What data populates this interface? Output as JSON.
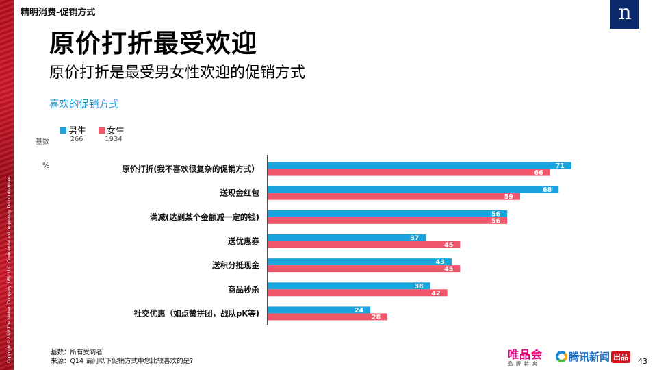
{
  "header": {
    "section_label": "精明消费-促销方式",
    "title": "原价打折最受欢迎",
    "subtitle": "原价打折是最受男女性欢迎的促销方式"
  },
  "brand": {
    "logo_letter": "n"
  },
  "side_note": "Copyright © 2018 The Nielsen Company (US), LLC. Confidential and proprietary. Do not distribute.",
  "chart_data": {
    "type": "bar",
    "orientation": "horizontal",
    "title": "喜欢的促销方式",
    "unit": "%",
    "base_label": "基数",
    "categories": [
      "原价打折(我不喜欢很复杂的促销方式）",
      "送现金红包",
      "满减(达到某个金额减一定的钱)",
      "送优惠券",
      "送积分抵现金",
      "商品秒杀",
      "社交优惠（如点赞拼团，战队pK等)"
    ],
    "series": [
      {
        "name": "男生",
        "base": "266",
        "color": "#1aa3dd",
        "values": [
          71,
          68,
          56,
          37,
          43,
          38,
          24
        ]
      },
      {
        "name": "女生",
        "base": "1934",
        "color": "#f2566a",
        "values": [
          66,
          59,
          56,
          45,
          45,
          42,
          28
        ]
      }
    ],
    "xlim": [
      0,
      71
    ],
    "legend_position": "top-left",
    "grid": false,
    "data_labels": "inside-end"
  },
  "footnotes": {
    "base": "基数：所有受访者",
    "source": "来源：Q14 请问以下促销方式中您比较喜欢的是?"
  },
  "partners": {
    "vip_name": "唯品会",
    "vip_sub": "品牌特卖",
    "tencent_name": "腾讯新闻",
    "tencent_tag": "出品"
  },
  "page_number": "43"
}
